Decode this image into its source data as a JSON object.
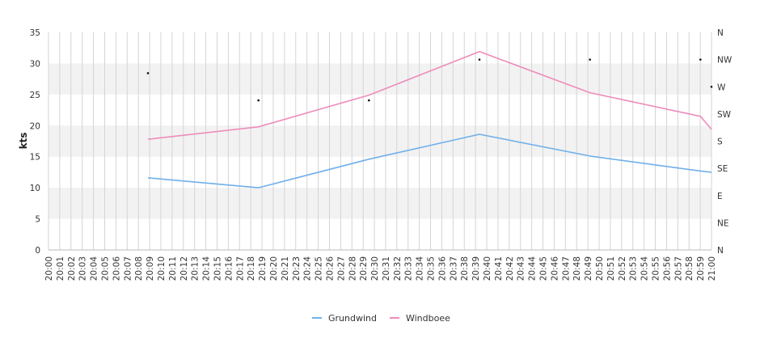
{
  "chart_data": {
    "type": "line",
    "ylabel": "kts",
    "ylim": [
      0,
      35
    ],
    "y_ticks": [
      0,
      5,
      10,
      15,
      20,
      25,
      30,
      35
    ],
    "x_start_minute": 0,
    "x_end_minute": 60,
    "x_ticks": [
      "20:00",
      "20:01",
      "20:02",
      "20:03",
      "20:04",
      "20:05",
      "20:06",
      "20:07",
      "20:08",
      "20:09",
      "20:10",
      "20:11",
      "20:12",
      "20:13",
      "20:14",
      "20:15",
      "20:16",
      "20:17",
      "20:18",
      "20:19",
      "20:20",
      "20:21",
      "20:23",
      "20:24",
      "20:25",
      "20:26",
      "20:27",
      "20:28",
      "20:29",
      "20:30",
      "20:31",
      "20:32",
      "20:33",
      "20:34",
      "20:35",
      "20:36",
      "20:37",
      "20:38",
      "20:39",
      "20:40",
      "20:41",
      "20:42",
      "20:43",
      "20:44",
      "20:45",
      "20:46",
      "20:47",
      "20:48",
      "20:49",
      "20:50",
      "20:51",
      "20:52",
      "20:53",
      "20:54",
      "20:55",
      "20:56",
      "20:57",
      "20:58",
      "20:59",
      "21:00"
    ],
    "right_axis_ticks": [
      "N",
      "NE",
      "E",
      "SE",
      "S",
      "SW",
      "W",
      "NW",
      "N"
    ],
    "band_color": "#f2f2f2",
    "grid": true,
    "legend_position": "bottom",
    "series": [
      {
        "name": "Grundwind",
        "color": "#6fb0ea",
        "points": [
          {
            "x": "20:09",
            "y": 11.6
          },
          {
            "x": "20:19",
            "y": 10.0
          },
          {
            "x": "20:29",
            "y": 14.6
          },
          {
            "x": "20:39",
            "y": 18.6
          },
          {
            "x": "20:49",
            "y": 15.1
          },
          {
            "x": "20:59",
            "y": 12.7
          },
          {
            "x": "21:00",
            "y": 12.5
          }
        ]
      },
      {
        "name": "Windboee",
        "color": "#ee8cbb",
        "points": [
          {
            "x": "20:09",
            "y": 17.8
          },
          {
            "x": "20:19",
            "y": 19.8
          },
          {
            "x": "20:29",
            "y": 24.9
          },
          {
            "x": "20:39",
            "y": 31.9
          },
          {
            "x": "20:49",
            "y": 25.3
          },
          {
            "x": "20:59",
            "y": 21.5
          },
          {
            "x": "21:00",
            "y": 19.4
          }
        ]
      }
    ],
    "direction_markers": [
      {
        "x": "20:09",
        "direction": "WNW"
      },
      {
        "x": "20:19",
        "direction": "WSW"
      },
      {
        "x": "20:29",
        "direction": "WSW"
      },
      {
        "x": "20:39",
        "direction": "NW"
      },
      {
        "x": "20:49",
        "direction": "NW"
      },
      {
        "x": "20:59",
        "direction": "NW"
      },
      {
        "x": "21:00",
        "direction": "W"
      }
    ]
  }
}
